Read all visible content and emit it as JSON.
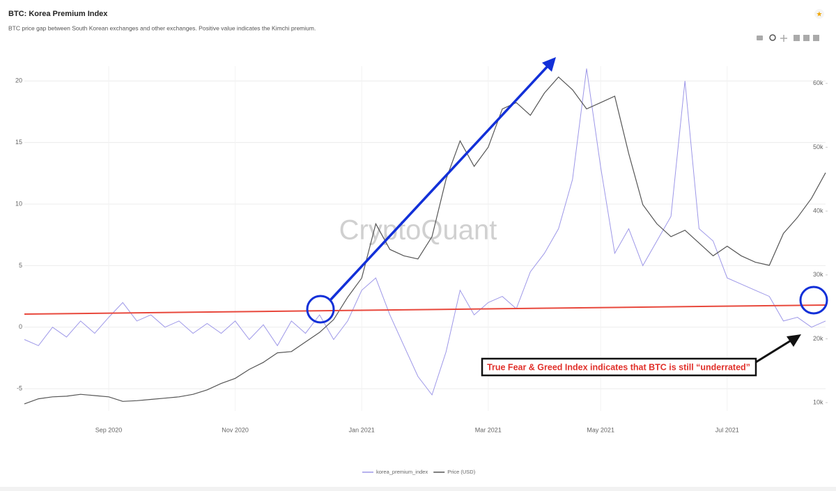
{
  "chart_data": {
    "type": "line",
    "title": "BTC: Korea Premium Index",
    "subtitle": "BTC price gap between South Korean exchanges and other exchanges. Positive value indicates the Kimchi premium.",
    "watermark": "CryptoQuant",
    "annotation": "True Fear & Greed Index indicates that BTC is still “underrated”",
    "categories": [
      null,
      null,
      null,
      null,
      null,
      null,
      "Sep 2020",
      null,
      null,
      null,
      null,
      null,
      null,
      null,
      null,
      "Nov 2020",
      null,
      null,
      null,
      null,
      null,
      null,
      null,
      null,
      "Jan 2021",
      null,
      null,
      null,
      null,
      null,
      null,
      null,
      null,
      "Mar 2021",
      null,
      null,
      null,
      null,
      null,
      null,
      null,
      "May 2021",
      null,
      null,
      null,
      null,
      null,
      null,
      null,
      null,
      "Jul 2021",
      null,
      null,
      null,
      null,
      null,
      null,
      null
    ],
    "ylim": [
      -6.8,
      21.2
    ],
    "yticks": [
      -5,
      0,
      5,
      10,
      15,
      20
    ],
    "y2lim": [
      8700,
      62700
    ],
    "y2ticks": [
      {
        "value": 10000,
        "label": "10k"
      },
      {
        "value": 20000,
        "label": "20k"
      },
      {
        "value": 30000,
        "label": "30k"
      },
      {
        "value": 40000,
        "label": "40k"
      },
      {
        "value": 50000,
        "label": "50k"
      },
      {
        "value": 60000,
        "label": "60k"
      }
    ],
    "grid": true,
    "legend": "bottom",
    "series": [
      {
        "name": "korea_premium_index",
        "color": "#9d97e8",
        "values": [
          -1,
          -1.5,
          0,
          -0.8,
          0.5,
          -0.5,
          0.8,
          2,
          0.5,
          1,
          0,
          0.5,
          -0.5,
          0.3,
          -0.5,
          0.5,
          -1,
          0.2,
          -1.5,
          0.5,
          -0.5,
          1,
          -1,
          0.5,
          3,
          4,
          1,
          -1.5,
          -4,
          -5.5,
          -2,
          3,
          1,
          2,
          2.5,
          1.5,
          4.5,
          6,
          8,
          12,
          21,
          13,
          6,
          8,
          5,
          7,
          9,
          20,
          8,
          7,
          4,
          3.5,
          3,
          2.5,
          0.5,
          0.8,
          0,
          0.5
        ]
      },
      {
        "name": "Price (USD)",
        "color": "#555555",
        "axis": "y2",
        "values": [
          9800,
          10600,
          10900,
          11000,
          11300,
          11100,
          10900,
          10200,
          10300,
          10500,
          10700,
          10900,
          11300,
          12000,
          13000,
          13800,
          15200,
          16300,
          17800,
          18000,
          19500,
          21000,
          23000,
          26500,
          29500,
          38000,
          34000,
          33000,
          32500,
          36000,
          45000,
          51000,
          47000,
          50000,
          56000,
          57000,
          55000,
          58500,
          61000,
          59000,
          56000,
          57000,
          58000,
          49000,
          41000,
          38000,
          36000,
          37000,
          35000,
          33000,
          34500,
          33000,
          32000,
          31500,
          36500,
          39000,
          42000,
          46000
        ]
      }
    ]
  }
}
